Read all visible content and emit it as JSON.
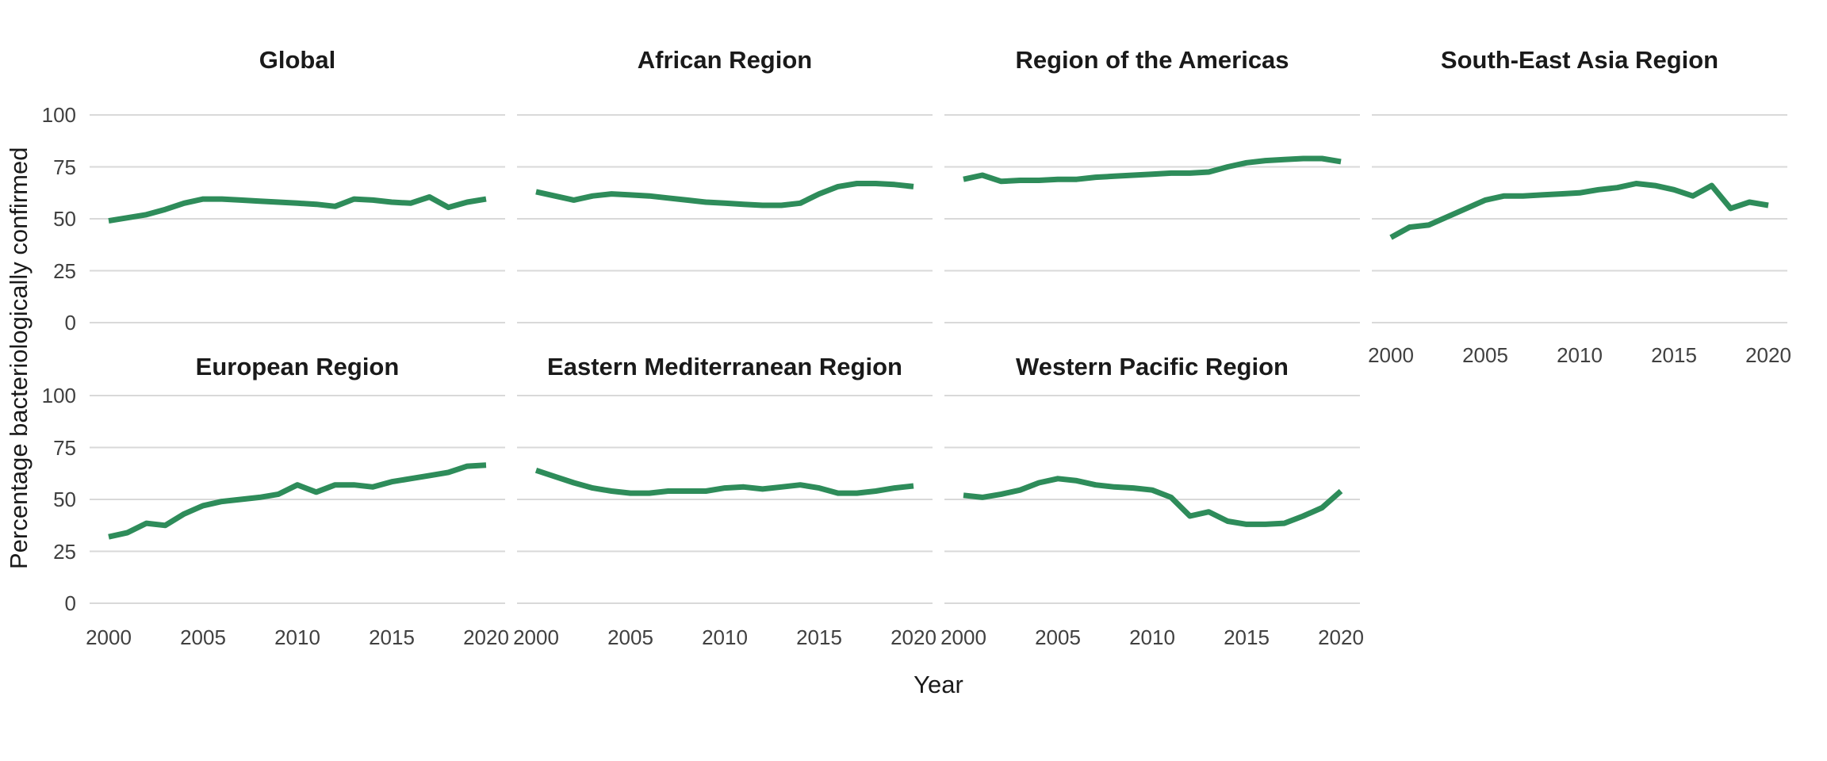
{
  "figure": {
    "ylabel": "Percentage bacteriologically confirmed",
    "xlabel": "Year"
  },
  "chart_data": {
    "type": "line",
    "small_multiples": true,
    "title": "",
    "xlabel": "Year",
    "ylabel": "Percentage bacteriologically confirmed",
    "x": [
      2000,
      2001,
      2002,
      2003,
      2004,
      2005,
      2006,
      2007,
      2008,
      2009,
      2010,
      2011,
      2012,
      2013,
      2014,
      2015,
      2016,
      2017,
      2018,
      2019,
      2020
    ],
    "facets": [
      {
        "title": "Global",
        "values": [
          49,
          50.5,
          52,
          54.5,
          57.5,
          59.5,
          59.5,
          59,
          58.5,
          58,
          57.5,
          57,
          56,
          59.5,
          59,
          58,
          57.5,
          60.5,
          55.5,
          58,
          59.5
        ]
      },
      {
        "title": "African Region",
        "values": [
          63,
          61,
          59,
          61,
          62,
          61.5,
          61,
          60,
          59,
          58,
          57.5,
          57,
          56.5,
          56.5,
          57.5,
          62,
          65.5,
          67,
          67,
          66.5,
          65.5
        ]
      },
      {
        "title": "Region of the Americas",
        "values": [
          69,
          71,
          68,
          68.5,
          68.5,
          69,
          69,
          70,
          70.5,
          71,
          71.5,
          72,
          72,
          72.5,
          75,
          77,
          78,
          78.5,
          79,
          79,
          77.5
        ]
      },
      {
        "title": "South-East Asia Region",
        "values": [
          41,
          46,
          47,
          51,
          55,
          59,
          61,
          61,
          61.5,
          62,
          62.5,
          64,
          65,
          67,
          66,
          64,
          61,
          66,
          55,
          58,
          56.5
        ]
      },
      {
        "title": "European Region",
        "values": [
          32,
          34,
          38.5,
          37.5,
          43,
          47,
          49,
          50,
          51,
          52.5,
          57,
          53.5,
          57,
          57,
          56,
          58.5,
          60,
          61.5,
          63,
          66,
          66.5
        ]
      },
      {
        "title": "Eastern Mediterranean Region",
        "values": [
          64,
          61,
          58,
          55.5,
          54,
          53,
          53,
          54,
          54,
          54,
          55.5,
          56,
          55,
          56,
          57,
          55.5,
          53,
          53,
          54,
          55.5,
          56.5
        ]
      },
      {
        "title": "Western Pacific Region",
        "values": [
          52,
          51,
          52.5,
          54.5,
          58,
          60,
          59,
          57,
          56,
          55.5,
          54.5,
          51,
          42,
          44,
          39.5,
          38,
          38,
          38.5,
          42,
          46,
          54
        ]
      }
    ],
    "ylim": [
      0,
      100
    ],
    "yticks": [
      0,
      25,
      50,
      75,
      100
    ],
    "xticks": [
      2000,
      2005,
      2010,
      2015,
      2020
    ],
    "grid": "horizontal-only",
    "legend": "none",
    "line_color": "#2e8c5a",
    "gridline_color": "#d9d9d9",
    "text_color": "#1a1a1a",
    "tick_text_color": "#404040"
  }
}
